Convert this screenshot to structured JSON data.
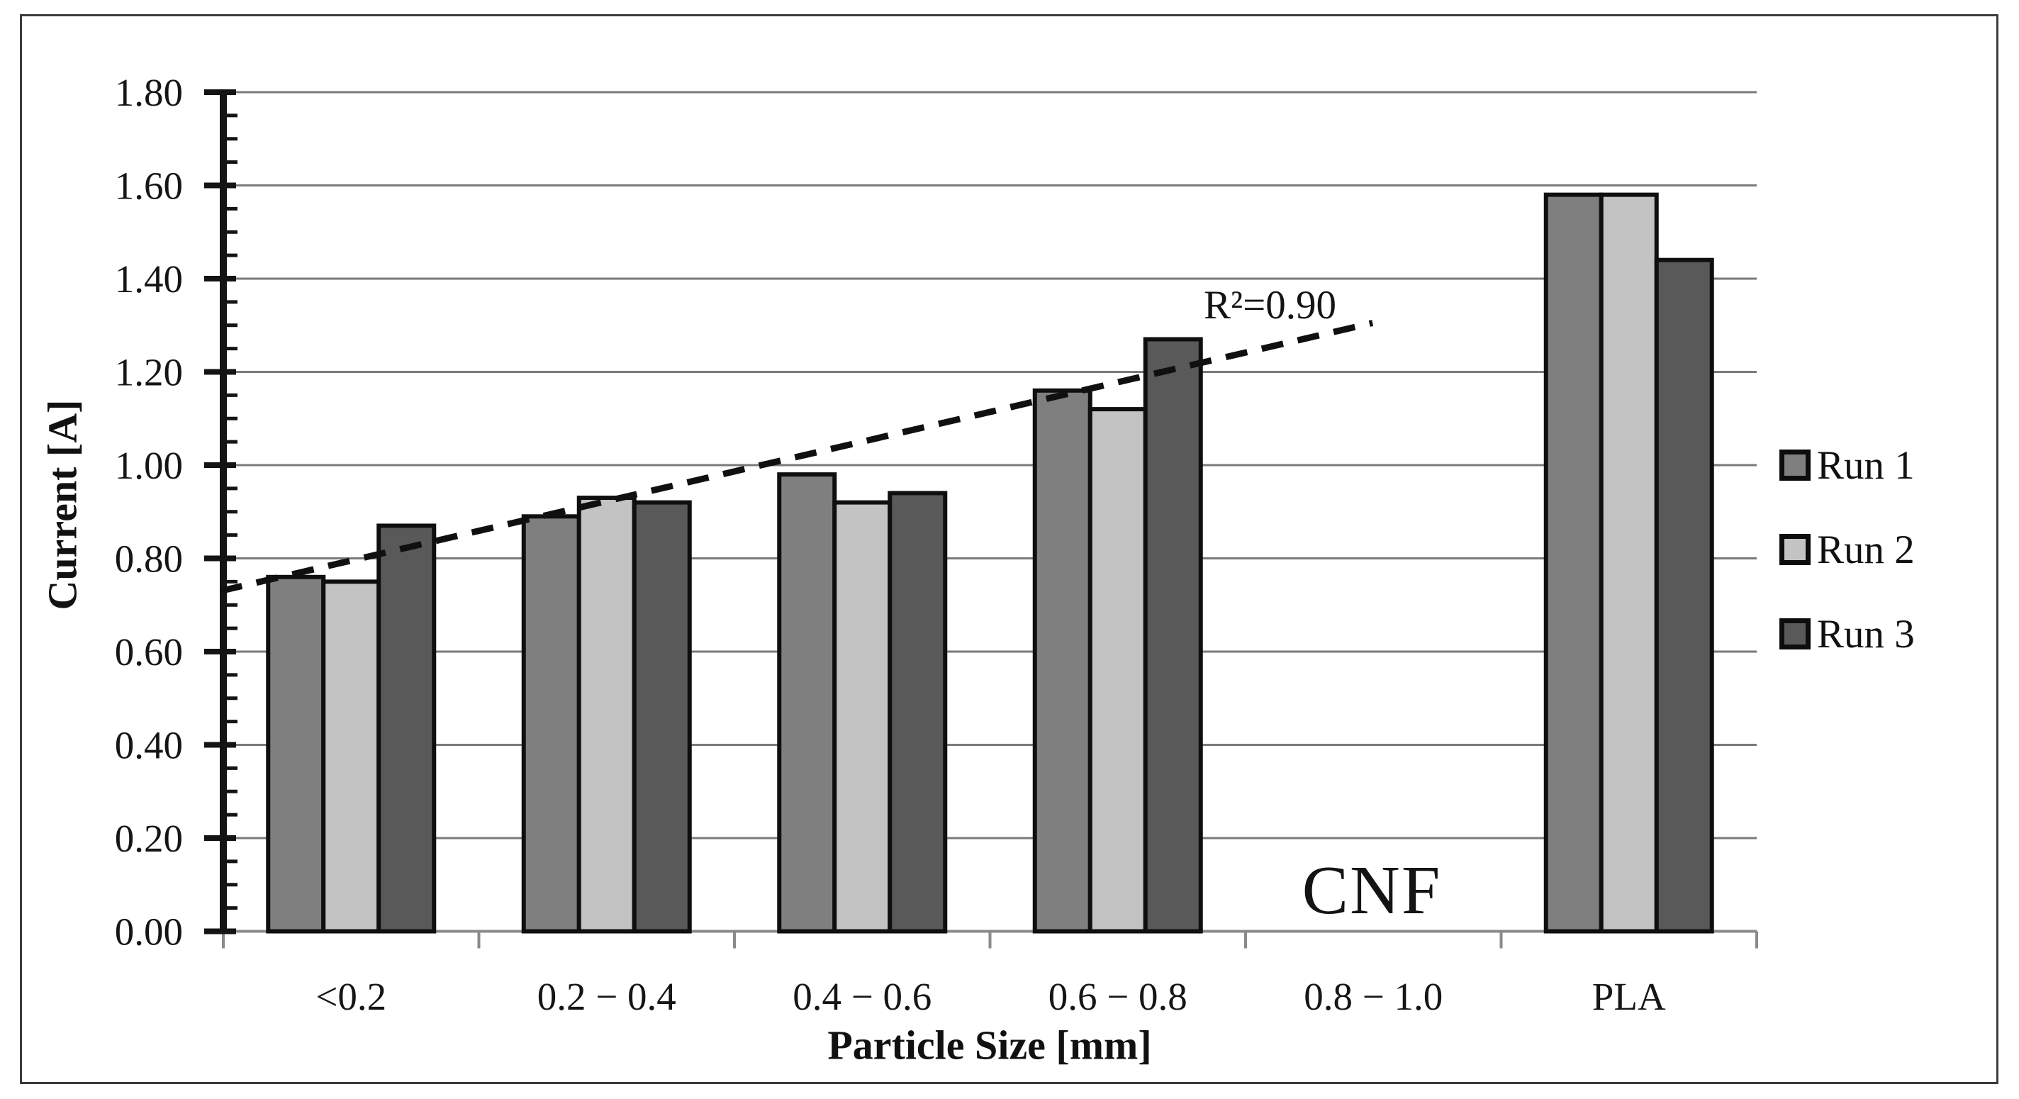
{
  "figure": {
    "y_axis_title": "Current [A]",
    "x_axis_title": "Particle Size [mm]",
    "annotations": {
      "r2": "R²=0.90",
      "cnf": "CNF"
    },
    "legend": [
      {
        "label": "Run 1",
        "color": "#7f7f7f"
      },
      {
        "label": "Run 2",
        "color": "#c3c3c3"
      },
      {
        "label": "Run 3",
        "color": "#595959"
      }
    ]
  },
  "chart_data": {
    "type": "bar",
    "title": "",
    "xlabel": "Particle Size [mm]",
    "ylabel": "Current [A]",
    "categories": [
      "<0.2",
      "0.2 − 0.4",
      "0.4 − 0.6",
      "0.6 − 0.8",
      "0.8 − 1.0",
      "PLA"
    ],
    "series": [
      {
        "name": "Run 1",
        "color": "#7f7f7f",
        "values": [
          0.76,
          0.89,
          0.98,
          1.16,
          null,
          1.58
        ]
      },
      {
        "name": "Run 2",
        "color": "#c3c3c3",
        "values": [
          0.75,
          0.93,
          0.92,
          1.12,
          null,
          1.58
        ]
      },
      {
        "name": "Run 3",
        "color": "#595959",
        "values": [
          0.87,
          0.92,
          0.94,
          1.27,
          null,
          1.44
        ]
      }
    ],
    "ylim": [
      0,
      1.8
    ],
    "ytick_step": 0.2,
    "minor_tick_step": 0.05,
    "yticks": [
      "0.00",
      "0.20",
      "0.40",
      "0.60",
      "0.80",
      "1.00",
      "1.20",
      "1.40",
      "1.60",
      "1.80"
    ],
    "grid": true,
    "legend_position": "right",
    "bar_edge_color": "#0f0f0f",
    "grid_color": "#7a7a7a",
    "trendline": {
      "style": "dashed",
      "color": "#101010",
      "x_start_frac": 0.0,
      "x_end_frac": 0.7495,
      "y_start": 0.73,
      "y_end": 1.305,
      "r2_label": "R²=0.90"
    },
    "group_label": "CNF",
    "group_label_category_index": 4
  }
}
